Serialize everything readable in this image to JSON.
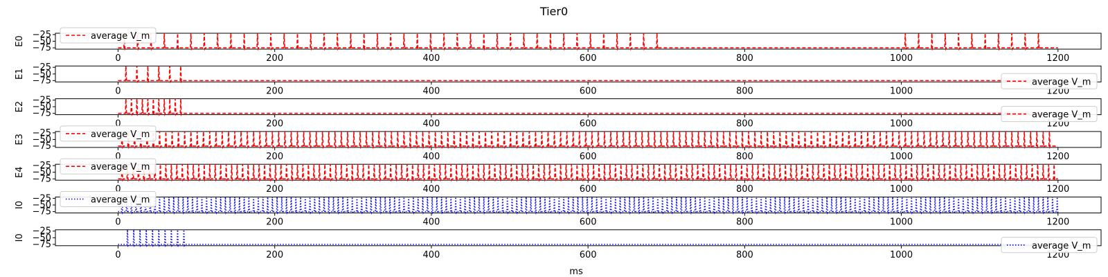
{
  "chart_data": {
    "type": "line",
    "title": "Tier0",
    "xlabel": "ms",
    "xlim": [
      -80,
      1255
    ],
    "x_ticks": [
      0,
      200,
      400,
      600,
      800,
      1000,
      1200
    ],
    "ylim": [
      -80,
      -20
    ],
    "y_ticks": [
      -25,
      -50,
      -75
    ],
    "legend_label": "average V_m",
    "panels": [
      {
        "ylabel": "E0",
        "color": "#ff0000",
        "style": "dashed",
        "legend_loc": "upper-left",
        "spikes": {
          "start": 8,
          "period": 17,
          "end": 690,
          "extra": [
            [
              1005,
              1185,
              17
            ]
          ]
        }
      },
      {
        "ylabel": "E1",
        "color": "#ff0000",
        "style": "dashed",
        "legend_loc": "lower-right",
        "spikes": {
          "start": 10,
          "period": 14,
          "end": 85
        }
      },
      {
        "ylabel": "E2",
        "color": "#ff0000",
        "style": "dashed",
        "legend_loc": "lower-right",
        "spikes": {
          "start": 10,
          "period": 7,
          "end": 82
        }
      },
      {
        "ylabel": "E3",
        "color": "#ff0000",
        "style": "dashed",
        "legend_loc": "upper-left",
        "spikes": {
          "start": 5,
          "period": 8,
          "end": 1195
        }
      },
      {
        "ylabel": "E4",
        "color": "#ff0000",
        "style": "dashed",
        "legend_loc": "upper-left",
        "spikes": {
          "start": 5,
          "period": 7,
          "end": 1200
        }
      },
      {
        "ylabel": "I0",
        "color": "#0000ff",
        "style": "dotted",
        "legend_loc": "upper-left",
        "spikes": {
          "start": 5,
          "period": 6,
          "end": 1200
        }
      },
      {
        "ylabel": "I0",
        "color": "#0000ff",
        "style": "dotted",
        "legend_loc": "lower-right",
        "spikes": {
          "start": 12,
          "period": 8,
          "end": 85
        }
      }
    ]
  }
}
